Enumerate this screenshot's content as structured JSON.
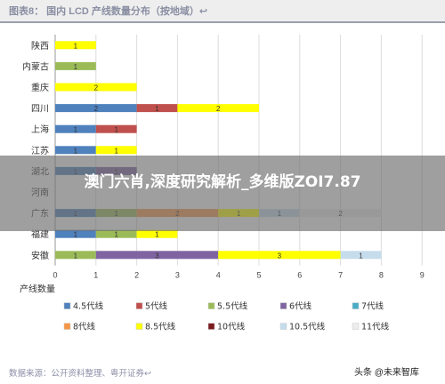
{
  "header": {
    "title": "图表8：  国内 LCD 产线数量分布（按地域）↩"
  },
  "overlay": {
    "text": "澳门六肖,深度研究解析_多维版ZOI7.87"
  },
  "footer": {
    "source": "数据来源：公开资料整理、粤开证券↩",
    "watermark": "头条 @未来智库"
  },
  "chart_data": {
    "type": "bar",
    "orientation": "horizontal",
    "stacked": true,
    "title": "",
    "xlabel": "产线数量",
    "ylabel": "",
    "xlim": [
      0,
      9
    ],
    "xticks": [
      0,
      1,
      2,
      3,
      4,
      5,
      6,
      7,
      8,
      9
    ],
    "grid": true,
    "legend_position": "bottom",
    "categories": [
      "陕西",
      "内蒙古",
      "重庆",
      "四川",
      "上海",
      "江苏",
      "湖北",
      "河南",
      "广东",
      "福建",
      "安徽"
    ],
    "series": [
      {
        "name": "4.5代线",
        "color": "#4f81bd",
        "values": [
          0,
          0,
          0,
          2,
          1,
          1,
          1,
          0,
          1,
          1,
          0
        ]
      },
      {
        "name": "5代线",
        "color": "#c0504d",
        "values": [
          0,
          0,
          0,
          1,
          1,
          0,
          0,
          0,
          0,
          0,
          0
        ]
      },
      {
        "name": "5.5代线",
        "color": "#9bbb59",
        "values": [
          0,
          1,
          0,
          0,
          0,
          0,
          0,
          0,
          1,
          1,
          1
        ]
      },
      {
        "name": "6代线",
        "color": "#8064a2",
        "values": [
          0,
          0,
          0,
          0,
          0,
          0,
          1,
          0,
          0,
          0,
          3
        ]
      },
      {
        "name": "7代线",
        "color": "#4bacc6",
        "values": [
          0,
          0,
          0,
          0,
          0,
          0,
          0,
          0,
          0,
          0,
          0
        ]
      },
      {
        "name": "8代线",
        "color": "#f79646",
        "values": [
          0,
          0,
          0,
          0,
          0,
          0,
          0,
          0,
          2,
          0,
          0
        ]
      },
      {
        "name": "8.5代线",
        "color": "#ffff00",
        "values": [
          1,
          0,
          2,
          2,
          0,
          1,
          0,
          0,
          1,
          1,
          3
        ]
      },
      {
        "name": "10代线",
        "color": "#7b1a1e",
        "values": [
          0,
          0,
          0,
          0,
          0,
          0,
          0,
          0,
          0,
          0,
          0
        ]
      },
      {
        "name": "10.5代线",
        "color": "#c5dcec",
        "values": [
          0,
          0,
          0,
          0,
          0,
          0,
          0,
          0,
          1,
          0,
          1
        ]
      },
      {
        "name": "11代线",
        "color": "#ececec",
        "values": [
          0,
          0,
          0,
          0,
          0,
          0,
          0,
          0,
          2,
          0,
          0
        ]
      }
    ]
  }
}
